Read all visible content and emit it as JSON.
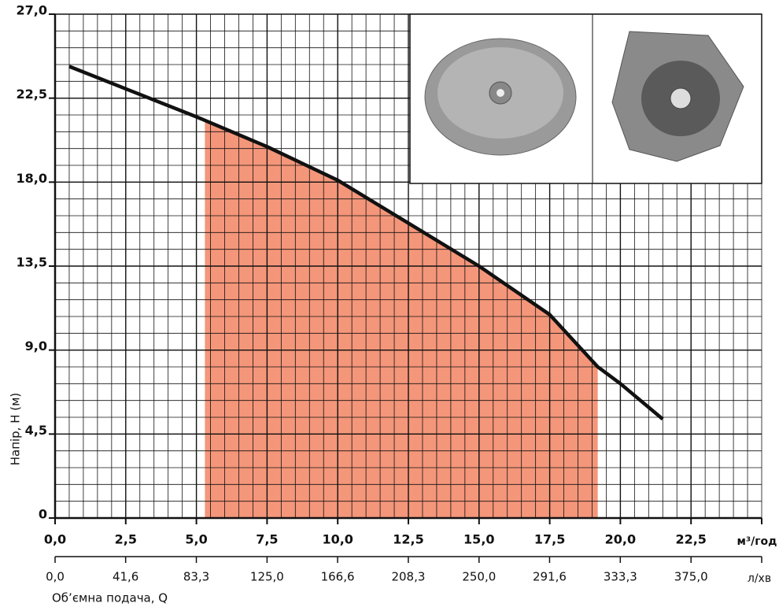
{
  "chart_data": {
    "type": "line",
    "y_label": "Напір, H (м)",
    "x_label": "Об’ємна подача, Q",
    "x_unit": "м³/год",
    "x2_unit": "л/хв",
    "xlim": [
      0,
      25
    ],
    "ylim": [
      0,
      27
    ],
    "x2lim": [
      0,
      416.67
    ],
    "xticks": [
      {
        "value": 0,
        "label": "0,0"
      },
      {
        "value": 2.5,
        "label": "2,5"
      },
      {
        "value": 5,
        "label": "5,0"
      },
      {
        "value": 7.5,
        "label": "7,5"
      },
      {
        "value": 10,
        "label": "10,0"
      },
      {
        "value": 12.5,
        "label": "12,5"
      },
      {
        "value": 15,
        "label": "15,0"
      },
      {
        "value": 17.5,
        "label": "17,5"
      },
      {
        "value": 20,
        "label": "20,0"
      },
      {
        "value": 22.5,
        "label": "22,5"
      }
    ],
    "x2ticks": [
      {
        "value": 0,
        "label": "0,0"
      },
      {
        "value": 41.6,
        "label": "41,6"
      },
      {
        "value": 83.3,
        "label": "83,3"
      },
      {
        "value": 125,
        "label": "125,0"
      },
      {
        "value": 166.6,
        "label": "166,6"
      },
      {
        "value": 208.3,
        "label": "208,3"
      },
      {
        "value": 250,
        "label": "250,0"
      },
      {
        "value": 291.6,
        "label": "291,6"
      },
      {
        "value": 333.3,
        "label": "333,3"
      },
      {
        "value": 375,
        "label": "375,0"
      }
    ],
    "yticks": [
      0,
      {
        "value": 4.5,
        "label": "4,5"
      },
      {
        "value": 9,
        "label": "9,0"
      },
      {
        "value": 13.5,
        "label": "13,5"
      },
      {
        "value": 18,
        "label": "18,0"
      },
      {
        "value": 22.5,
        "label": "22,5"
      },
      {
        "value": 27,
        "label": "27,0"
      }
    ],
    "grid": true,
    "x": [
      0.5,
      2.5,
      5.0,
      7.5,
      10.0,
      12.5,
      15.0,
      17.5,
      19.2,
      20.0,
      21.5
    ],
    "values": [
      24.2,
      23.0,
      21.5,
      19.9,
      18.1,
      15.8,
      13.5,
      10.9,
      8.1,
      7.2,
      5.3
    ],
    "color": "#111111",
    "fill_range": [
      5.3,
      19.2
    ],
    "fill_color": "#f4967a"
  }
}
